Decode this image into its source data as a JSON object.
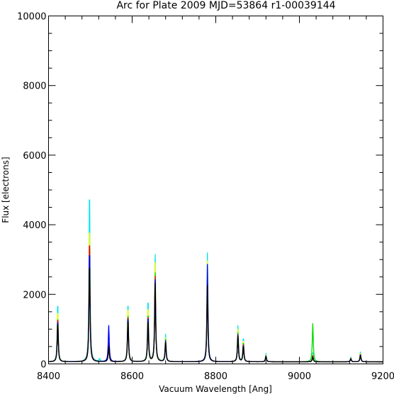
{
  "chart_data": {
    "type": "line",
    "title": "Arc for Plate 2009  MJD=53864  r1-00039144",
    "xlabel": "Vacuum Wavelength [Ang]",
    "ylabel": "Flux [electrons]",
    "xlim": [
      8400,
      9200
    ],
    "ylim": [
      0,
      10000
    ],
    "x_ticks": [
      8400,
      8600,
      8800,
      9000,
      9200
    ],
    "y_ticks": [
      0,
      2000,
      4000,
      6000,
      8000,
      10000
    ],
    "x_minor_step": 40,
    "y_minor_step": 500,
    "grid": false,
    "legend": "none",
    "baseline": 60,
    "series": [
      {
        "color": "#00e5ee",
        "lines": [
          [
            8422,
            1720
          ],
          [
            8498,
            5030
          ],
          [
            8522,
            80
          ],
          [
            8544,
            700
          ],
          [
            8590,
            1720
          ],
          [
            8638,
            1800
          ],
          [
            8655,
            3130
          ],
          [
            8680,
            780
          ],
          [
            8780,
            3130
          ],
          [
            8853,
            1050
          ],
          [
            8866,
            700
          ],
          [
            8920,
            240
          ],
          [
            9032,
            260
          ],
          [
            9123,
            140
          ],
          [
            9146,
            300
          ]
        ]
      },
      {
        "color": "#ffff00",
        "lines": [
          [
            8422,
            1500
          ],
          [
            8498,
            4000
          ],
          [
            8544,
            600
          ],
          [
            8590,
            1600
          ],
          [
            8638,
            1600
          ],
          [
            8655,
            2900
          ],
          [
            8680,
            680
          ],
          [
            8780,
            2900
          ],
          [
            8853,
            950
          ],
          [
            8866,
            620
          ],
          [
            8920,
            200
          ],
          [
            9032,
            200
          ],
          [
            9123,
            120
          ],
          [
            9146,
            260
          ]
        ]
      },
      {
        "color": "#00dd00",
        "lines": [
          [
            8422,
            1300
          ],
          [
            8498,
            3500
          ],
          [
            8544,
            550
          ],
          [
            8590,
            1400
          ],
          [
            8638,
            1400
          ],
          [
            8655,
            2600
          ],
          [
            8680,
            640
          ],
          [
            8780,
            2500
          ],
          [
            8853,
            850
          ],
          [
            8866,
            560
          ],
          [
            8920,
            180
          ],
          [
            9032,
            1100
          ],
          [
            9123,
            110
          ],
          [
            9146,
            230
          ]
        ]
      },
      {
        "color": "#ff0000",
        "lines": [
          [
            8422,
            1280
          ],
          [
            8498,
            3600
          ],
          [
            8544,
            520
          ],
          [
            8590,
            1350
          ],
          [
            8638,
            1350
          ],
          [
            8655,
            2500
          ],
          [
            8680,
            600
          ],
          [
            8780,
            2450
          ],
          [
            8853,
            800
          ],
          [
            8866,
            520
          ],
          [
            8920,
            170
          ],
          [
            9032,
            180
          ],
          [
            9123,
            100
          ],
          [
            9146,
            220
          ]
        ]
      },
      {
        "color": "#0000ff",
        "lines": [
          [
            8422,
            1200
          ],
          [
            8498,
            3300
          ],
          [
            8544,
            1040
          ],
          [
            8590,
            1300
          ],
          [
            8638,
            1300
          ],
          [
            8655,
            2400
          ],
          [
            8680,
            580
          ],
          [
            8780,
            2800
          ],
          [
            8853,
            780
          ],
          [
            8866,
            480
          ],
          [
            8920,
            160
          ],
          [
            9032,
            150
          ],
          [
            9123,
            90
          ],
          [
            9146,
            200
          ]
        ]
      },
      {
        "color": "#000000",
        "lines": [
          [
            8422,
            1150
          ],
          [
            8498,
            2900
          ],
          [
            8544,
            450
          ],
          [
            8590,
            1250
          ],
          [
            8638,
            1200
          ],
          [
            8655,
            2300
          ],
          [
            8680,
            550
          ],
          [
            8780,
            2200
          ],
          [
            8853,
            750
          ],
          [
            8866,
            460
          ],
          [
            8920,
            150
          ],
          [
            9032,
            140
          ],
          [
            9123,
            80
          ],
          [
            9146,
            180
          ]
        ]
      }
    ]
  }
}
